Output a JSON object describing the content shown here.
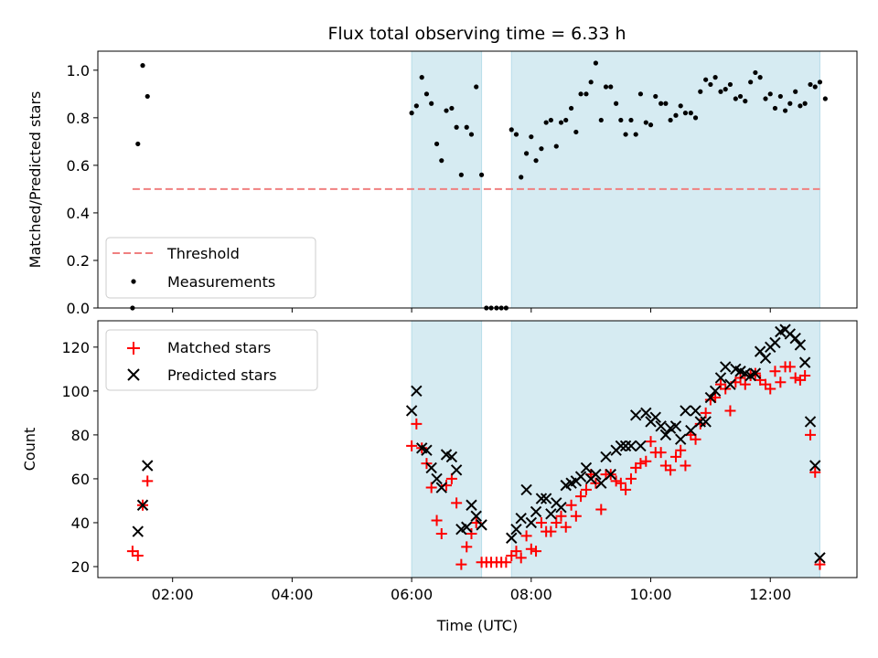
{
  "chart_data": {
    "type": "scatter",
    "title": "Flux total observing time = 6.33 h",
    "xlabel": "Time (UTC)",
    "x_unit": "hours UTC",
    "xlim": [
      0.75,
      13.45
    ],
    "xticks": [
      {
        "value": 2,
        "label": "02:00"
      },
      {
        "value": 4,
        "label": "04:00"
      },
      {
        "value": 6,
        "label": "06:00"
      },
      {
        "value": 8,
        "label": "08:00"
      },
      {
        "value": 10,
        "label": "10:00"
      },
      {
        "value": 12,
        "label": "12:00"
      }
    ],
    "shaded_intervals": [
      [
        6.0,
        7.17
      ],
      [
        7.67,
        12.83
      ]
    ],
    "top": {
      "ylabel": "Matched/Predicted stars",
      "ylim": [
        0.0,
        1.08
      ],
      "yticks": [
        {
          "value": 0.0,
          "label": "0.0"
        },
        {
          "value": 0.2,
          "label": "0.2"
        },
        {
          "value": 0.4,
          "label": "0.4"
        },
        {
          "value": 0.6,
          "label": "0.6"
        },
        {
          "value": 0.8,
          "label": "0.8"
        },
        {
          "value": 1.0,
          "label": "1.0"
        }
      ],
      "threshold": {
        "name": "Threshold",
        "value": 0.5,
        "x_range": [
          1.33,
          12.83
        ],
        "color": "#f08080"
      },
      "measurements": {
        "name": "Measurements",
        "color": "#000000",
        "points": [
          [
            1.33,
            0.0
          ],
          [
            1.42,
            0.69
          ],
          [
            1.5,
            1.02
          ],
          [
            1.58,
            0.89
          ],
          [
            6.0,
            0.82
          ],
          [
            6.08,
            0.85
          ],
          [
            6.17,
            0.97
          ],
          [
            6.25,
            0.9
          ],
          [
            6.33,
            0.86
          ],
          [
            6.42,
            0.69
          ],
          [
            6.5,
            0.62
          ],
          [
            6.58,
            0.83
          ],
          [
            6.67,
            0.84
          ],
          [
            6.75,
            0.76
          ],
          [
            6.83,
            0.56
          ],
          [
            6.92,
            0.76
          ],
          [
            7.0,
            0.73
          ],
          [
            7.08,
            0.93
          ],
          [
            7.17,
            0.56
          ],
          [
            7.25,
            0.0
          ],
          [
            7.33,
            0.0
          ],
          [
            7.42,
            0.0
          ],
          [
            7.5,
            0.0
          ],
          [
            7.58,
            0.0
          ],
          [
            7.67,
            0.75
          ],
          [
            7.75,
            0.73
          ],
          [
            7.83,
            0.55
          ],
          [
            7.92,
            0.65
          ],
          [
            8.0,
            0.72
          ],
          [
            8.08,
            0.62
          ],
          [
            8.17,
            0.67
          ],
          [
            8.25,
            0.78
          ],
          [
            8.33,
            0.79
          ],
          [
            8.42,
            0.68
          ],
          [
            8.5,
            0.78
          ],
          [
            8.58,
            0.79
          ],
          [
            8.67,
            0.84
          ],
          [
            8.75,
            0.74
          ],
          [
            8.83,
            0.9
          ],
          [
            8.92,
            0.9
          ],
          [
            9.0,
            0.95
          ],
          [
            9.08,
            1.03
          ],
          [
            9.17,
            0.79
          ],
          [
            9.25,
            0.93
          ],
          [
            9.33,
            0.93
          ],
          [
            9.42,
            0.86
          ],
          [
            9.5,
            0.79
          ],
          [
            9.58,
            0.73
          ],
          [
            9.67,
            0.79
          ],
          [
            9.75,
            0.73
          ],
          [
            9.83,
            0.9
          ],
          [
            9.92,
            0.78
          ],
          [
            10.0,
            0.77
          ],
          [
            10.08,
            0.89
          ],
          [
            10.17,
            0.86
          ],
          [
            10.25,
            0.86
          ],
          [
            10.33,
            0.79
          ],
          [
            10.42,
            0.81
          ],
          [
            10.5,
            0.85
          ],
          [
            10.58,
            0.82
          ],
          [
            10.67,
            0.82
          ],
          [
            10.75,
            0.8
          ],
          [
            10.83,
            0.91
          ],
          [
            10.92,
            0.96
          ],
          [
            11.0,
            0.94
          ],
          [
            11.08,
            0.97
          ],
          [
            11.17,
            0.91
          ],
          [
            11.25,
            0.92
          ],
          [
            11.33,
            0.94
          ],
          [
            11.42,
            0.88
          ],
          [
            11.5,
            0.89
          ],
          [
            11.58,
            0.87
          ],
          [
            11.67,
            0.95
          ],
          [
            11.75,
            0.99
          ],
          [
            11.83,
            0.97
          ],
          [
            11.92,
            0.88
          ],
          [
            12.0,
            0.9
          ],
          [
            12.08,
            0.84
          ],
          [
            12.17,
            0.89
          ],
          [
            12.25,
            0.83
          ],
          [
            12.33,
            0.86
          ],
          [
            12.42,
            0.91
          ],
          [
            12.5,
            0.85
          ],
          [
            12.58,
            0.86
          ],
          [
            12.67,
            0.94
          ],
          [
            12.75,
            0.93
          ],
          [
            12.83,
            0.95
          ],
          [
            12.92,
            0.88
          ]
        ]
      },
      "legend_location": "lower-left"
    },
    "bottom": {
      "ylabel": "Count",
      "ylim": [
        15,
        132
      ],
      "yticks": [
        {
          "value": 20,
          "label": "20"
        },
        {
          "value": 40,
          "label": "40"
        },
        {
          "value": 60,
          "label": "60"
        },
        {
          "value": 80,
          "label": "80"
        },
        {
          "value": 100,
          "label": "100"
        },
        {
          "value": 120,
          "label": "120"
        }
      ],
      "legend_location": "upper-left",
      "series": [
        {
          "name": "Matched stars",
          "marker": "+",
          "color": "#ff0000",
          "points": [
            [
              1.33,
              27
            ],
            [
              1.42,
              25
            ],
            [
              1.5,
              48
            ],
            [
              1.58,
              59
            ],
            [
              6.0,
              75
            ],
            [
              6.08,
              85
            ],
            [
              6.17,
              74
            ],
            [
              6.25,
              67
            ],
            [
              6.33,
              56
            ],
            [
              6.42,
              41
            ],
            [
              6.5,
              35
            ],
            [
              6.58,
              57
            ],
            [
              6.67,
              60
            ],
            [
              6.75,
              49
            ],
            [
              6.83,
              21
            ],
            [
              6.92,
              29
            ],
            [
              7.0,
              35
            ],
            [
              7.08,
              40
            ],
            [
              7.17,
              22
            ],
            [
              7.25,
              22
            ],
            [
              7.33,
              22
            ],
            [
              7.42,
              22
            ],
            [
              7.5,
              22
            ],
            [
              7.58,
              22
            ],
            [
              7.67,
              25
            ],
            [
              7.75,
              27
            ],
            [
              7.83,
              24
            ],
            [
              7.92,
              34
            ],
            [
              8.0,
              28
            ],
            [
              8.08,
              27
            ],
            [
              8.17,
              40
            ],
            [
              8.25,
              36
            ],
            [
              8.33,
              36
            ],
            [
              8.42,
              40
            ],
            [
              8.5,
              43
            ],
            [
              8.58,
              38
            ],
            [
              8.67,
              48
            ],
            [
              8.75,
              43
            ],
            [
              8.83,
              52
            ],
            [
              8.92,
              55
            ],
            [
              9.0,
              62
            ],
            [
              9.08,
              58
            ],
            [
              9.17,
              46
            ],
            [
              9.25,
              62
            ],
            [
              9.33,
              62
            ],
            [
              9.42,
              59
            ],
            [
              9.5,
              58
            ],
            [
              9.58,
              55
            ],
            [
              9.67,
              60
            ],
            [
              9.75,
              65
            ],
            [
              9.83,
              67
            ],
            [
              9.92,
              68
            ],
            [
              10.0,
              77
            ],
            [
              10.08,
              72
            ],
            [
              10.17,
              72
            ],
            [
              10.25,
              66
            ],
            [
              10.33,
              64
            ],
            [
              10.42,
              70
            ],
            [
              10.5,
              73
            ],
            [
              10.58,
              66
            ],
            [
              10.67,
              80
            ],
            [
              10.75,
              78
            ],
            [
              10.83,
              85
            ],
            [
              10.92,
              90
            ],
            [
              11.0,
              96
            ],
            [
              11.08,
              97
            ],
            [
              11.17,
              103
            ],
            [
              11.25,
              101
            ],
            [
              11.33,
              91
            ],
            [
              11.42,
              104
            ],
            [
              11.5,
              106
            ],
            [
              11.58,
              103
            ],
            [
              11.67,
              107
            ],
            [
              11.75,
              108
            ],
            [
              11.83,
              105
            ],
            [
              11.92,
              103
            ],
            [
              12.0,
              101
            ],
            [
              12.08,
              109
            ],
            [
              12.17,
              104
            ],
            [
              12.25,
              111
            ],
            [
              12.33,
              111
            ],
            [
              12.42,
              106
            ],
            [
              12.5,
              105
            ],
            [
              12.58,
              107
            ],
            [
              12.67,
              80
            ],
            [
              12.75,
              63
            ],
            [
              12.83,
              21
            ]
          ]
        },
        {
          "name": "Predicted stars",
          "marker": "x",
          "color": "#000000",
          "points": [
            [
              1.42,
              36
            ],
            [
              1.5,
              48
            ],
            [
              1.58,
              66
            ],
            [
              6.0,
              91
            ],
            [
              6.08,
              100
            ],
            [
              6.17,
              74
            ],
            [
              6.25,
              73
            ],
            [
              6.33,
              65
            ],
            [
              6.42,
              60
            ],
            [
              6.5,
              56
            ],
            [
              6.58,
              71
            ],
            [
              6.67,
              70
            ],
            [
              6.75,
              64
            ],
            [
              6.83,
              37
            ],
            [
              6.92,
              38
            ],
            [
              7.0,
              48
            ],
            [
              7.08,
              43
            ],
            [
              7.17,
              39
            ],
            [
              7.67,
              33
            ],
            [
              7.75,
              37
            ],
            [
              7.83,
              42
            ],
            [
              7.92,
              55
            ],
            [
              8.0,
              40
            ],
            [
              8.08,
              45
            ],
            [
              8.17,
              51
            ],
            [
              8.25,
              51
            ],
            [
              8.33,
              44
            ],
            [
              8.42,
              49
            ],
            [
              8.5,
              47
            ],
            [
              8.58,
              57
            ],
            [
              8.67,
              58
            ],
            [
              8.75,
              59
            ],
            [
              8.83,
              61
            ],
            [
              8.92,
              65
            ],
            [
              9.0,
              60
            ],
            [
              9.08,
              62
            ],
            [
              9.17,
              58
            ],
            [
              9.25,
              70
            ],
            [
              9.33,
              62
            ],
            [
              9.42,
              73
            ],
            [
              9.5,
              75
            ],
            [
              9.58,
              75
            ],
            [
              9.67,
              75
            ],
            [
              9.75,
              89
            ],
            [
              9.83,
              75
            ],
            [
              9.92,
              90
            ],
            [
              10.0,
              86
            ],
            [
              10.08,
              88
            ],
            [
              10.17,
              84
            ],
            [
              10.25,
              80
            ],
            [
              10.33,
              83
            ],
            [
              10.42,
              84
            ],
            [
              10.5,
              78
            ],
            [
              10.58,
              91
            ],
            [
              10.67,
              82
            ],
            [
              10.75,
              91
            ],
            [
              10.83,
              86
            ],
            [
              10.92,
              86
            ],
            [
              11.0,
              97
            ],
            [
              11.08,
              100
            ],
            [
              11.17,
              106
            ],
            [
              11.25,
              111
            ],
            [
              11.33,
              103
            ],
            [
              11.42,
              110
            ],
            [
              11.5,
              109
            ],
            [
              11.58,
              108
            ],
            [
              11.67,
              107
            ],
            [
              11.75,
              108
            ],
            [
              11.83,
              118
            ],
            [
              11.92,
              115
            ],
            [
              12.0,
              120
            ],
            [
              12.08,
              122
            ],
            [
              12.17,
              127
            ],
            [
              12.25,
              128
            ],
            [
              12.33,
              126
            ],
            [
              12.42,
              124
            ],
            [
              12.5,
              121
            ],
            [
              12.58,
              113
            ],
            [
              12.67,
              86
            ],
            [
              12.75,
              66
            ],
            [
              12.83,
              24
            ]
          ]
        }
      ]
    }
  }
}
